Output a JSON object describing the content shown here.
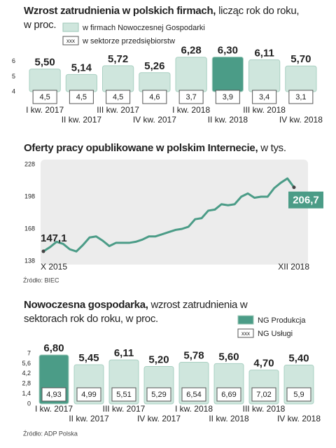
{
  "chart_data": [
    {
      "type": "bar",
      "title": "Wzrost zatrudnienia w polskich firmach,",
      "subtitle": "licząc rok do roku, w proc.",
      "categories": [
        "I kw. 2017",
        "II kw. 2017",
        "III kw. 2017",
        "IV kw. 2017",
        "I kw. 2018",
        "II kw. 2018",
        "III kw. 2018",
        "IV kw. 2018"
      ],
      "series": [
        {
          "name": "w firmach Nowoczesnej Gospodarki",
          "color": "#cfe6dd",
          "colors": [
            "#cfe6dd",
            "#cfe6dd",
            "#cfe6dd",
            "#cfe6dd",
            "#cfe6dd",
            "#4b9c87",
            "#cfe6dd",
            "#cfe6dd"
          ],
          "values": [
            5.5,
            5.14,
            5.72,
            5.26,
            6.28,
            6.3,
            6.11,
            5.7
          ],
          "value_labels": [
            "5,50",
            "5,14",
            "5,72",
            "5,26",
            "6,28",
            "6,30",
            "6,11",
            "5,70"
          ]
        },
        {
          "name": "w sektorze przedsiębiorstw",
          "marker_label": "xxx",
          "color": "#ffffff",
          "values": [
            4.5,
            4.5,
            4.5,
            4.6,
            3.7,
            3.9,
            3.4,
            3.1
          ],
          "value_labels": [
            "4,5",
            "4,5",
            "4,5",
            "4,6",
            "3,7",
            "3,9",
            "3,4",
            "3,1"
          ]
        }
      ],
      "ylim": [
        4,
        6.5
      ],
      "yticks": [
        4,
        5,
        6
      ],
      "grid": false
    },
    {
      "type": "line",
      "title": "Oferty pracy opublikowane w polskim Internecie,",
      "subtitle": "w tys.",
      "categories": [
        "X 2015",
        null,
        null,
        null,
        null,
        null,
        null,
        null,
        null,
        null,
        null,
        null,
        null,
        null,
        null,
        null,
        null,
        null,
        null,
        null,
        null,
        null,
        null,
        null,
        null,
        null,
        null,
        null,
        null,
        null,
        null,
        null,
        null,
        null,
        null,
        null,
        null,
        null,
        "XII 2018"
      ],
      "series": [
        {
          "name": "Oferty pracy",
          "color": "#4b9c87",
          "values": [
            147.1,
            151,
            156,
            154,
            149,
            147,
            153,
            160,
            161,
            157,
            152,
            155,
            155,
            155,
            156,
            158,
            161,
            161,
            163,
            165,
            167,
            168,
            170,
            177,
            178,
            185,
            186,
            191,
            190,
            191,
            198,
            201,
            197,
            198,
            198,
            206,
            211,
            215,
            206.7
          ],
          "value_labels": [
            "147,1",
            null,
            null,
            null,
            null,
            null,
            null,
            null,
            null,
            null,
            null,
            null,
            null,
            null,
            null,
            null,
            null,
            null,
            null,
            null,
            null,
            null,
            null,
            null,
            null,
            null,
            null,
            null,
            null,
            null,
            null,
            null,
            null,
            null,
            null,
            null,
            null,
            null,
            "206,7"
          ]
        }
      ],
      "ylim": [
        138,
        228
      ],
      "yticks": [
        138,
        168,
        198,
        228
      ],
      "grid": false,
      "source": "Źródło: BIEC"
    },
    {
      "type": "bar",
      "title": "Nowoczesna gospodarka,",
      "subtitle": "wzrost zatrudnienia w sektorach rok do roku, w proc.",
      "categories": [
        "I kw. 2017",
        "II kw. 2017",
        "III kw. 2017",
        "IV kw. 2017",
        "I kw. 2018",
        "II kw. 2018",
        "III kw. 2018",
        "IV kw. 2018"
      ],
      "series": [
        {
          "name": "NG Produkcja",
          "color": "#4b9c87",
          "colors": [
            "#4b9c87",
            "#cfe6dd",
            "#cfe6dd",
            "#cfe6dd",
            "#cfe6dd",
            "#cfe6dd",
            "#cfe6dd",
            "#cfe6dd"
          ],
          "values": [
            6.8,
            5.45,
            6.11,
            5.2,
            5.78,
            5.6,
            4.7,
            5.4
          ],
          "value_labels": [
            "6,80",
            "5,45",
            "6,11",
            "5,20",
            "5,78",
            "5,60",
            "4,70",
            "5,40"
          ]
        },
        {
          "name": "NG Usługi",
          "marker_label": "xxx",
          "color": "#ffffff",
          "values": [
            4.93,
            4.99,
            5.51,
            5.29,
            6.54,
            6.69,
            7.02,
            5.9
          ],
          "value_labels": [
            "4,93",
            "4,99",
            "5,51",
            "5,29",
            "6,54",
            "6,69",
            "7,02",
            "5,9"
          ]
        }
      ],
      "ylim": [
        0,
        7
      ],
      "yticks": [
        0,
        {
          "value": 1.4,
          "label": "1,4"
        },
        {
          "value": 2.8,
          "label": "2,8"
        },
        {
          "value": 4.2,
          "label": "4,2"
        },
        {
          "value": 5.6,
          "label": "5,6"
        },
        7
      ],
      "grid": false,
      "source": "Źródło: ADP Polska"
    }
  ]
}
